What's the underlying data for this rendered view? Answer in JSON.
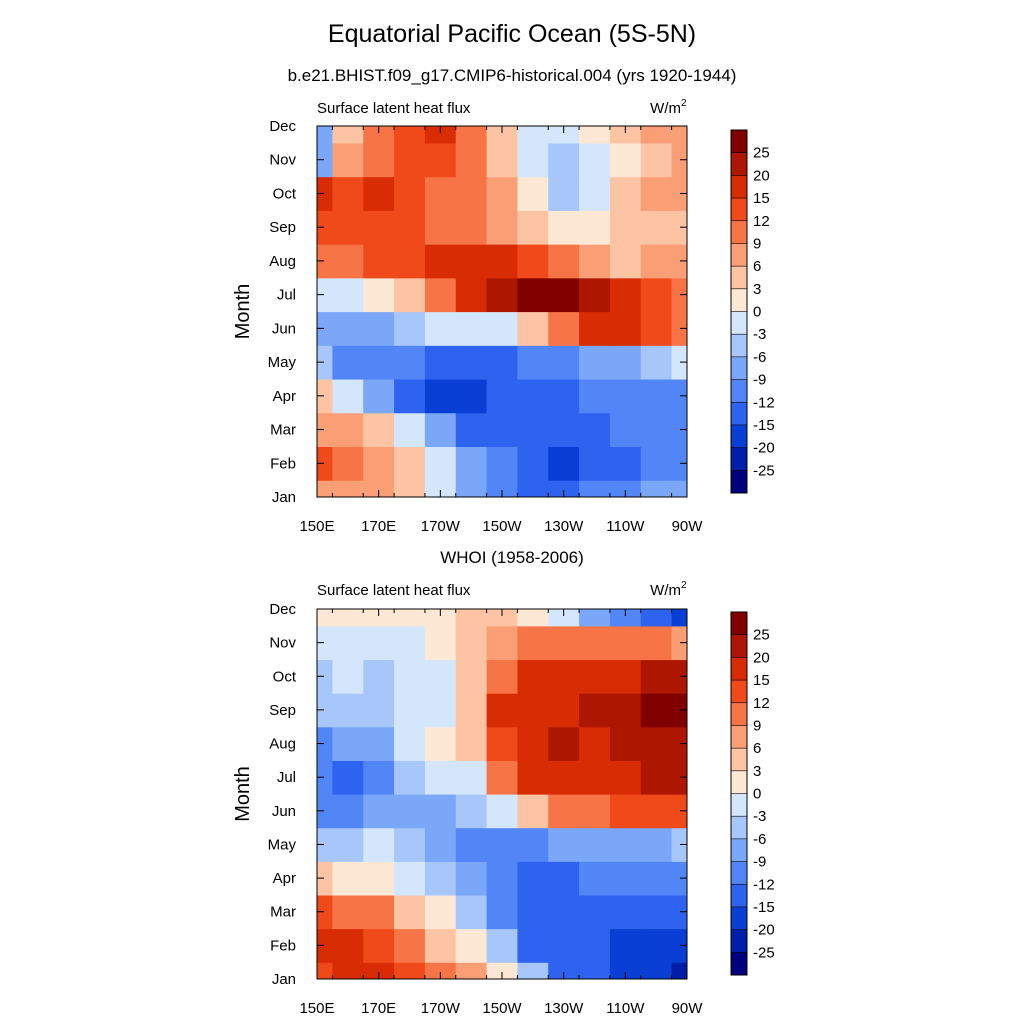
{
  "title": "Equatorial Pacific Ocean (5S-5N)",
  "subtitle": "b.e21.BHIST.f09_g17.CMIP6-historical.004 (yrs 1920-1944)",
  "chart_data": [
    {
      "type": "heatmap",
      "title": "",
      "variable": "Surface latent heat flux",
      "units": "W/m",
      "units_exp": "2",
      "xlabel": "",
      "ylabel": "Month",
      "x_ticks": [
        "150E",
        "170E",
        "170W",
        "150W",
        "130W",
        "110W",
        "90W"
      ],
      "x_range": [
        "150E",
        "90W"
      ],
      "y_ticks": [
        "Jan",
        "Feb",
        "Mar",
        "Apr",
        "May",
        "Jun",
        "Jul",
        "Aug",
        "Sep",
        "Oct",
        "Nov",
        "Dec"
      ],
      "levels": [
        -25,
        -20,
        -15,
        -12,
        -9,
        -6,
        -3,
        0,
        3,
        6,
        9,
        12,
        15,
        20,
        25
      ],
      "columns_deg_east": [
        150,
        160,
        170,
        180,
        190,
        200,
        210,
        220,
        230,
        240,
        250,
        260,
        270
      ],
      "values": [
        [
          8,
          8,
          6,
          3,
          -3,
          -9,
          -12,
          -15,
          -15,
          -12,
          -12,
          -9,
          -9
        ],
        [
          12,
          10,
          6,
          3,
          -3,
          -9,
          -12,
          -15,
          -20,
          -15,
          -15,
          -12,
          -12
        ],
        [
          6,
          6,
          3,
          -3,
          -9,
          -15,
          -15,
          -15,
          -15,
          -15,
          -12,
          -12,
          -12
        ],
        [
          3,
          -3,
          -9,
          -15,
          -20,
          -20,
          -15,
          -15,
          -15,
          -12,
          -12,
          -12,
          -12
        ],
        [
          -6,
          -12,
          -12,
          -12,
          -15,
          -15,
          -15,
          -12,
          -12,
          -9,
          -9,
          -6,
          -3
        ],
        [
          -9,
          -9,
          -9,
          -6,
          -3,
          -3,
          -3,
          3,
          9,
          15,
          15,
          12,
          9
        ],
        [
          -3,
          -3,
          0,
          3,
          9,
          15,
          20,
          25,
          25,
          20,
          15,
          12,
          9
        ],
        [
          9,
          9,
          12,
          12,
          15,
          15,
          15,
          12,
          9,
          6,
          3,
          6,
          6
        ],
        [
          12,
          12,
          12,
          12,
          9,
          9,
          6,
          3,
          0,
          0,
          3,
          3,
          3
        ],
        [
          15,
          12,
          15,
          12,
          9,
          9,
          6,
          0,
          -6,
          -3,
          3,
          6,
          6
        ],
        [
          -9,
          6,
          9,
          12,
          12,
          9,
          3,
          -3,
          -6,
          -3,
          0,
          3,
          6
        ],
        [
          -9,
          3,
          9,
          12,
          15,
          9,
          3,
          -3,
          -3,
          0,
          3,
          6,
          6
        ]
      ]
    },
    {
      "type": "heatmap",
      "title": "WHOI (1958-2006)",
      "variable": "Surface latent heat flux",
      "units": "W/m",
      "units_exp": "2",
      "xlabel": "",
      "ylabel": "Month",
      "x_ticks": [
        "150E",
        "170E",
        "170W",
        "150W",
        "130W",
        "110W",
        "90W"
      ],
      "x_range": [
        "150E",
        "90W"
      ],
      "y_ticks": [
        "Jan",
        "Feb",
        "Mar",
        "Apr",
        "May",
        "Jun",
        "Jul",
        "Aug",
        "Sep",
        "Oct",
        "Nov",
        "Dec"
      ],
      "levels": [
        -25,
        -20,
        -15,
        -12,
        -9,
        -6,
        -3,
        0,
        3,
        6,
        9,
        12,
        15,
        20,
        25
      ],
      "columns_deg_east": [
        150,
        160,
        170,
        180,
        190,
        200,
        210,
        220,
        230,
        240,
        250,
        260,
        270
      ],
      "values": [
        [
          12,
          15,
          15,
          12,
          9,
          6,
          0,
          -6,
          -15,
          -15,
          -20,
          -20,
          -25
        ],
        [
          15,
          15,
          12,
          9,
          3,
          0,
          -6,
          -15,
          -15,
          -15,
          -20,
          -20,
          -20
        ],
        [
          12,
          9,
          9,
          3,
          0,
          -6,
          -12,
          -15,
          -15,
          -15,
          -15,
          -15,
          -15
        ],
        [
          3,
          0,
          0,
          -3,
          -6,
          -9,
          -12,
          -15,
          -15,
          -12,
          -12,
          -12,
          -12
        ],
        [
          -6,
          -6,
          -3,
          -6,
          -9,
          -12,
          -12,
          -12,
          -9,
          -9,
          -9,
          -9,
          -6
        ],
        [
          -12,
          -12,
          -9,
          -9,
          -9,
          -6,
          -3,
          3,
          9,
          9,
          12,
          12,
          12
        ],
        [
          -12,
          -15,
          -12,
          -6,
          -3,
          -3,
          9,
          15,
          15,
          15,
          15,
          20,
          20
        ],
        [
          -12,
          -9,
          -9,
          -3,
          0,
          3,
          12,
          15,
          20,
          15,
          20,
          20,
          20
        ],
        [
          -6,
          -6,
          -6,
          -3,
          -3,
          3,
          15,
          15,
          15,
          20,
          20,
          25,
          25
        ],
        [
          -6,
          -3,
          -6,
          -3,
          -3,
          3,
          9,
          15,
          15,
          15,
          15,
          20,
          20
        ],
        [
          -3,
          -3,
          -3,
          -3,
          0,
          3,
          6,
          9,
          9,
          9,
          9,
          9,
          6
        ],
        [
          0,
          0,
          0,
          0,
          0,
          3,
          3,
          0,
          -3,
          -9,
          -12,
          -15,
          -20
        ]
      ]
    }
  ],
  "colors": {
    "scale": [
      "#00007f",
      "#001fa8",
      "#0a3fd6",
      "#2e63f0",
      "#5285f5",
      "#7aa7f7",
      "#a7c6fa",
      "#d4e6fc",
      "#fde8d5",
      "#fcc4a3",
      "#fa9e76",
      "#f77446",
      "#f04a1b",
      "#d82c05",
      "#ad1701",
      "#800000"
    ],
    "axis": "#000000"
  }
}
